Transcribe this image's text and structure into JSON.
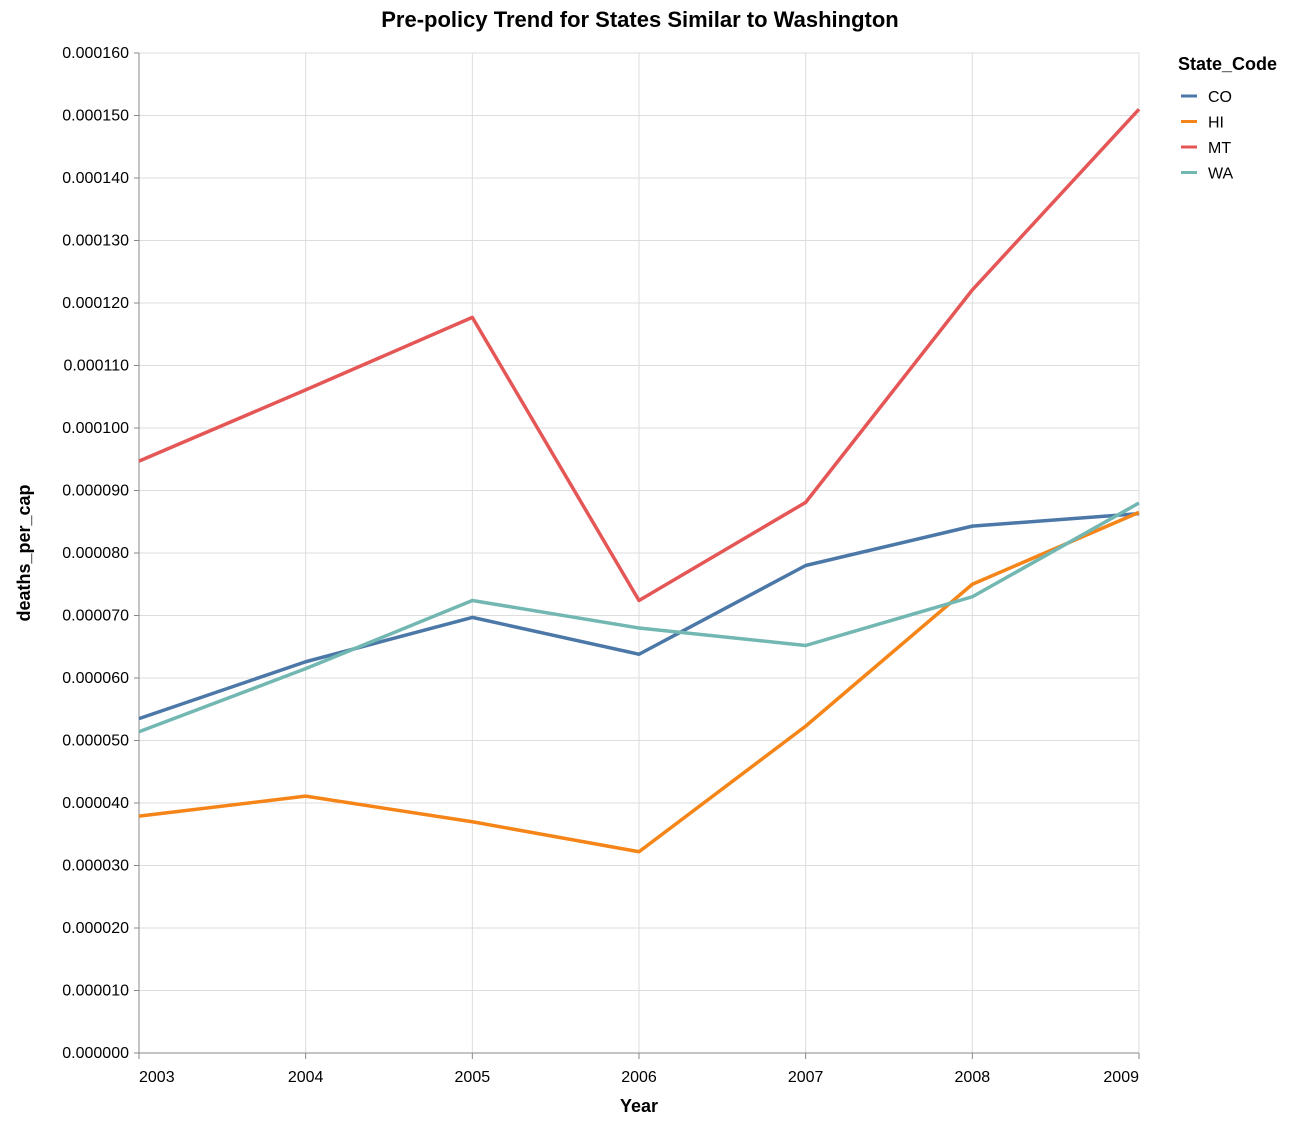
{
  "chart_data": {
    "type": "line",
    "title": "Pre-policy Trend for States Similar to Washington",
    "xlabel": "Year",
    "ylabel": "deaths_per_cap",
    "x": [
      2003,
      2004,
      2005,
      2006,
      2007,
      2008,
      2009
    ],
    "x_tick_labels": [
      "2003",
      "2004",
      "2005",
      "2006",
      "2007",
      "2008",
      "2009"
    ],
    "ylim": [
      0,
      0.00016
    ],
    "y_ticks": [
      0,
      1e-05,
      2e-05,
      3e-05,
      4e-05,
      5e-05,
      6e-05,
      7e-05,
      8e-05,
      9e-05,
      0.0001,
      0.00011,
      0.00012,
      0.00013,
      0.00014,
      0.00015,
      0.00016
    ],
    "y_tick_labels": [
      "0.000000",
      "0.000010",
      "0.000020",
      "0.000030",
      "0.000040",
      "0.000050",
      "0.000060",
      "0.000070",
      "0.000080",
      "0.000090",
      "0.000100",
      "0.000110",
      "0.000120",
      "0.000130",
      "0.000140",
      "0.000150",
      "0.000160"
    ],
    "grid": true,
    "legend_title": "State_Code",
    "legend_position": "top-right",
    "series": [
      {
        "name": "CO",
        "color": "#4c78a8",
        "values": [
          5.35e-05,
          6.26e-05,
          6.97e-05,
          6.38e-05,
          7.8e-05,
          8.43e-05,
          8.63e-05
        ]
      },
      {
        "name": "HI",
        "color": "#f58518",
        "values": [
          3.79e-05,
          4.11e-05,
          3.7e-05,
          3.22e-05,
          5.23e-05,
          7.5e-05,
          8.65e-05
        ]
      },
      {
        "name": "MT",
        "color": "#e45756",
        "values": [
          9.47e-05,
          0.0001061,
          0.0001177,
          7.24e-05,
          8.81e-05,
          0.0001221,
          0.000151
        ]
      },
      {
        "name": "WA",
        "color": "#72b7b2",
        "values": [
          5.14e-05,
          6.15e-05,
          7.24e-05,
          6.8e-05,
          6.52e-05,
          7.3e-05,
          8.8e-05
        ]
      }
    ]
  }
}
